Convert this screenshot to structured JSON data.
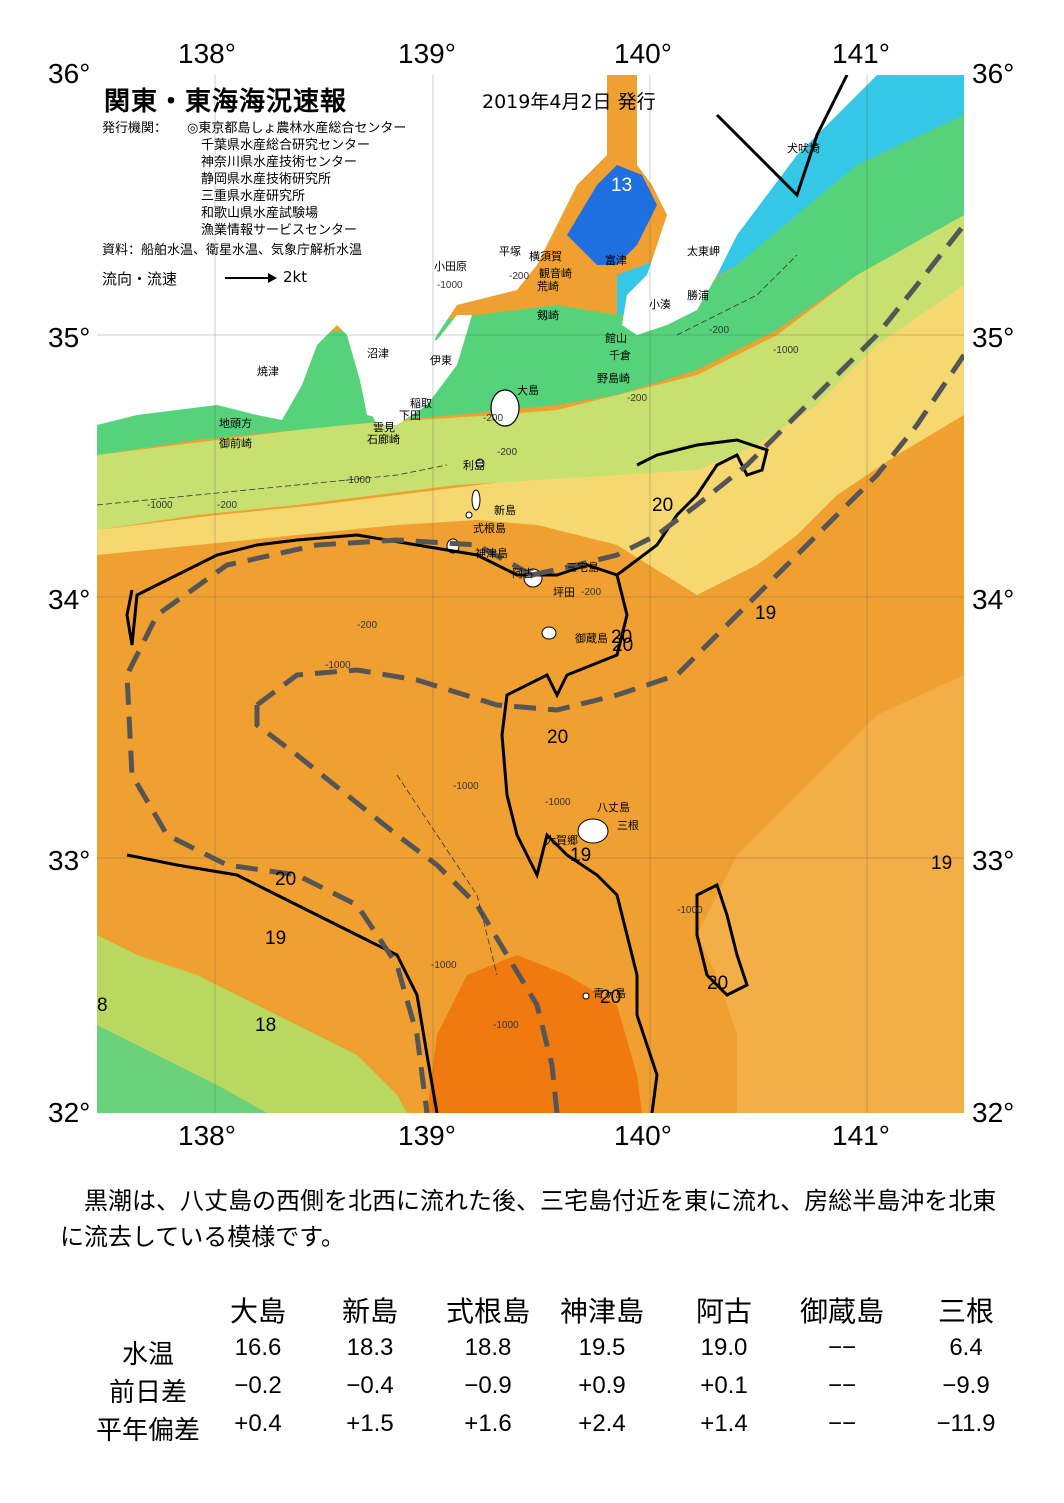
{
  "map": {
    "title": "関東・東海海況速報",
    "issued": "2019年4月2日 発行",
    "issuer_label": "発行機関：",
    "issuers": [
      "◎東京都島しょ農林水産総合センター",
      "千葉県水産総合研究センター",
      "神奈川県水産技術センター",
      "静岡県水産技術研究所",
      "三重県水産研究所",
      "和歌山県水産試験場",
      "漁業情報サービスセンター"
    ],
    "sources": "資料：船舶水温、衛星水温、気象庁解析水温",
    "flow_label": "流向・流速",
    "flow_scale": "2kt",
    "lon_labels": [
      "138°",
      "139°",
      "140°",
      "141°"
    ],
    "lat_labels": [
      "36°",
      "35°",
      "34°",
      "33°",
      "32°"
    ],
    "places": [
      {
        "name": "犬吠埼"
      },
      {
        "name": "太東岬"
      },
      {
        "name": "勝浦"
      },
      {
        "name": "小湊"
      },
      {
        "name": "富津"
      },
      {
        "name": "平塚"
      },
      {
        "name": "横須賀"
      },
      {
        "name": "観音崎"
      },
      {
        "name": "剱崎"
      },
      {
        "name": "館山"
      },
      {
        "name": "千倉"
      },
      {
        "name": "野島崎"
      },
      {
        "name": "小田原"
      },
      {
        "name": "沼津"
      },
      {
        "name": "伊東"
      },
      {
        "name": "焼津"
      },
      {
        "name": "稲取"
      },
      {
        "name": "下田"
      },
      {
        "name": "雲見"
      },
      {
        "name": "石廊崎"
      },
      {
        "name": "地頭方"
      },
      {
        "name": "御前崎"
      },
      {
        "name": "大島"
      },
      {
        "name": "利島"
      },
      {
        "name": "新島"
      },
      {
        "name": "式根島"
      },
      {
        "name": "神津島"
      },
      {
        "name": "三宅島"
      },
      {
        "name": "坪田"
      },
      {
        "name": "阿古"
      },
      {
        "name": "御蔵島"
      },
      {
        "name": "八丈島"
      },
      {
        "name": "三根"
      },
      {
        "name": "大賀郷"
      },
      {
        "name": "青ヶ島"
      },
      {
        "name": "荒崎"
      }
    ],
    "isotherm_labels": [
      "13",
      "20",
      "20",
      "19",
      "20",
      "20",
      "19",
      "19",
      "20",
      "19",
      "18",
      "20",
      "20",
      "8"
    ],
    "depth_labels": [
      "-200",
      "-1000",
      "-200",
      "-1000",
      "-200",
      "-1000",
      "-200",
      "-1000",
      "-1000",
      "-1000",
      "-1000",
      "-1000",
      "-1000",
      "-200",
      "-200",
      "-200",
      "-1000",
      "-200"
    ],
    "colors": {
      "cold_blue": "#1e6fe0",
      "cyan": "#2ec8e8",
      "green": "#4fd36a",
      "yellow": "#f5e07a",
      "orange": "#f0a030",
      "deep_orange": "#f07a10",
      "kuroshio_axis": "#555555"
    }
  },
  "description": "黒潮は、八丈島の西側を北西に流れた後、三宅島付近を東に流れ、房総半島沖を北東に流去している模様です。",
  "table": {
    "columns": [
      "大島",
      "新島",
      "式根島",
      "神津島",
      "阿古",
      "御蔵島",
      "三根"
    ],
    "rows": [
      {
        "label": "水温",
        "values": [
          "16.6",
          "18.3",
          "18.8",
          "19.5",
          "19.0",
          "−−",
          "6.4"
        ]
      },
      {
        "label": "前日差",
        "values": [
          "−0.2",
          "−0.4",
          "−0.9",
          "+0.9",
          "+0.1",
          "−−",
          "−9.9"
        ]
      },
      {
        "label": "平年偏差",
        "values": [
          "+0.4",
          "+1.5",
          "+1.6",
          "+2.4",
          "+1.4",
          "−−",
          "−11.9"
        ]
      }
    ]
  }
}
